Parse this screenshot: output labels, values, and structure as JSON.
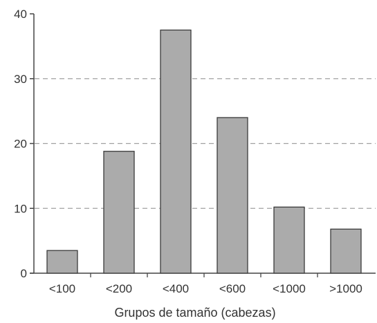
{
  "chart_data": {
    "type": "bar",
    "title": "",
    "xlabel": "Grupos de tamaño (cabezas)",
    "ylabel": "",
    "categories": [
      "<100",
      "<200",
      "<400",
      "<600",
      "<1000",
      ">1000"
    ],
    "values": [
      3.5,
      18.8,
      37.5,
      24.0,
      10.2,
      6.8
    ],
    "ylim": [
      0,
      40
    ],
    "yticks": [
      "0",
      "10",
      "20",
      "30",
      "40"
    ],
    "grid": "dashed horizontal at 10, 20, 30",
    "legend": "none",
    "colors": {
      "bar_fill": "#ababab",
      "bar_stroke": "#3a3a3a",
      "axis": "#444444",
      "grid": "#a0a0a0",
      "text": "#333333"
    }
  }
}
